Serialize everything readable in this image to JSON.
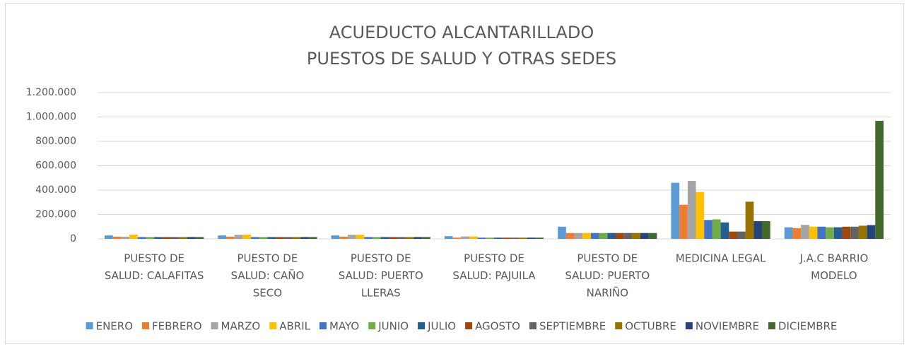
{
  "chart_data": {
    "type": "bar",
    "title": "ACUEDUCTO ALCANTARILLADO",
    "subtitle": "PUESTOS DE SALUD Y OTRAS SEDES",
    "categories": [
      [
        "PUESTO DE",
        "SALUD: CALAFITAS"
      ],
      [
        "PUESTO DE",
        "SALUD: CAÑO",
        "SECO"
      ],
      [
        "PUESTO DE",
        "SALUD: PUERTO",
        "LLERAS"
      ],
      [
        "PUESTO DE",
        "SALUD: PAJUILA"
      ],
      [
        "PUESTO DE",
        "SALUD: PUERTO",
        "NARIÑO"
      ],
      [
        "MEDICINA LEGAL"
      ],
      [
        "J.A.C BARRIO",
        "MODELO"
      ]
    ],
    "series": [
      {
        "name": "ENERO",
        "color": "#5B9BD5",
        "values": [
          28000,
          28000,
          28000,
          22000,
          100000,
          460000,
          95000
        ]
      },
      {
        "name": "FEBRERO",
        "color": "#ED7D31",
        "values": [
          18000,
          18000,
          18000,
          10000,
          48000,
          280000,
          88000
        ]
      },
      {
        "name": "MARZO",
        "color": "#A5A5A5",
        "values": [
          18000,
          33000,
          33000,
          20000,
          48000,
          475000,
          115000
        ]
      },
      {
        "name": "ABRIL",
        "color": "#FFC000",
        "values": [
          35000,
          35000,
          33000,
          20000,
          48000,
          385000,
          100000
        ]
      },
      {
        "name": "MAYO",
        "color": "#4472C4",
        "values": [
          15000,
          15000,
          15000,
          10000,
          48000,
          155000,
          100000
        ]
      },
      {
        "name": "JUNIO",
        "color": "#70AD47",
        "values": [
          15000,
          15000,
          15000,
          10000,
          48000,
          160000,
          95000
        ]
      },
      {
        "name": "JULIO",
        "color": "#255E91",
        "values": [
          15000,
          15000,
          15000,
          10000,
          48000,
          135000,
          95000
        ]
      },
      {
        "name": "AGOSTO",
        "color": "#9E480E",
        "values": [
          15000,
          15000,
          15000,
          10000,
          48000,
          60000,
          100000
        ]
      },
      {
        "name": "SEPTIEMBRE",
        "color": "#636363",
        "values": [
          15000,
          15000,
          15000,
          10000,
          48000,
          60000,
          100000
        ]
      },
      {
        "name": "OCTUBRE",
        "color": "#997300",
        "values": [
          15000,
          15000,
          15000,
          10000,
          48000,
          305000,
          108000
        ]
      },
      {
        "name": "NOVIEMBRE",
        "color": "#264478",
        "values": [
          15000,
          15000,
          15000,
          10000,
          48000,
          145000,
          113000
        ]
      },
      {
        "name": "DICIEMBRE",
        "color": "#43682B",
        "values": [
          15000,
          15000,
          15000,
          10000,
          48000,
          145000,
          968000
        ]
      }
    ],
    "ylim": [
      0,
      1200000
    ],
    "yticks": [
      0,
      {
        "value": 200000,
        "label": "200.000"
      },
      {
        "value": 400000,
        "label": "400.000"
      },
      {
        "value": 600000,
        "label": "600.000"
      },
      {
        "value": 800000,
        "label": "800.000"
      },
      {
        "value": 1000000,
        "label": "1.000.000"
      },
      {
        "value": 1200000,
        "label": "1.200.000"
      }
    ],
    "grid": true,
    "legend": "bottom"
  }
}
